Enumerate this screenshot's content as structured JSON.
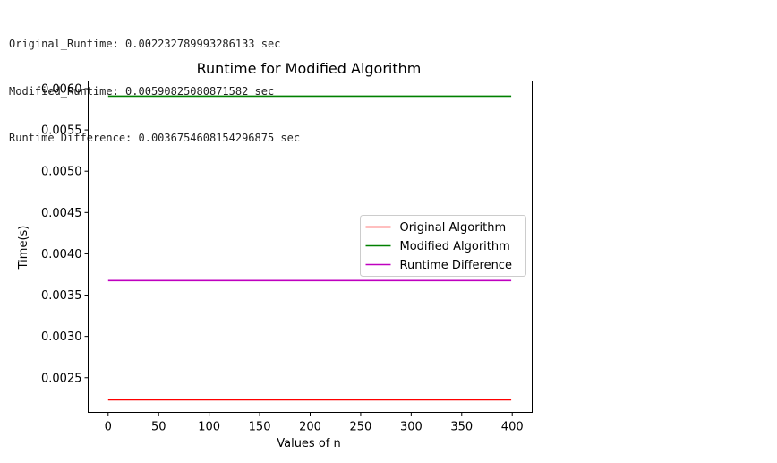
{
  "console": {
    "lines": [
      "Original_Runtime: 0.002232789993286133 sec",
      "Modified_Runtime: 0.00590825080871582 sec",
      "Runtime Difference: 0.0036754608154296875 sec"
    ]
  },
  "chart_data": {
    "type": "line",
    "title": "Runtime for Modified Algorithm",
    "xlabel": "Values of n",
    "ylabel": "Time(s)",
    "xlim": [
      -19.75,
      419.75
    ],
    "ylim": [
      0.00208,
      0.006092
    ],
    "x_ticks": [
      0,
      50,
      100,
      150,
      200,
      250,
      300,
      350,
      400
    ],
    "y_ticks": [
      0.0025,
      0.003,
      0.0035,
      0.004,
      0.0045,
      0.005,
      0.0055,
      0.006
    ],
    "y_tick_labels": [
      "0.0025",
      "0.0030",
      "0.0035",
      "0.0040",
      "0.0045",
      "0.0050",
      "0.0055",
      "0.0060"
    ],
    "grid": false,
    "legend": "center-right",
    "series": [
      {
        "name": "Original Algorithm",
        "color": "#ff0000",
        "x": [
          0,
          399
        ],
        "y": [
          0.002232789993286133,
          0.002232789993286133
        ]
      },
      {
        "name": "Modified Algorithm",
        "color": "#008000",
        "x": [
          0,
          399
        ],
        "y": [
          0.00590825080871582,
          0.00590825080871582
        ]
      },
      {
        "name": "Runtime Difference",
        "color": "#bf00bf",
        "x": [
          0,
          399
        ],
        "y": [
          0.0036754608154296875,
          0.0036754608154296875
        ]
      }
    ]
  }
}
